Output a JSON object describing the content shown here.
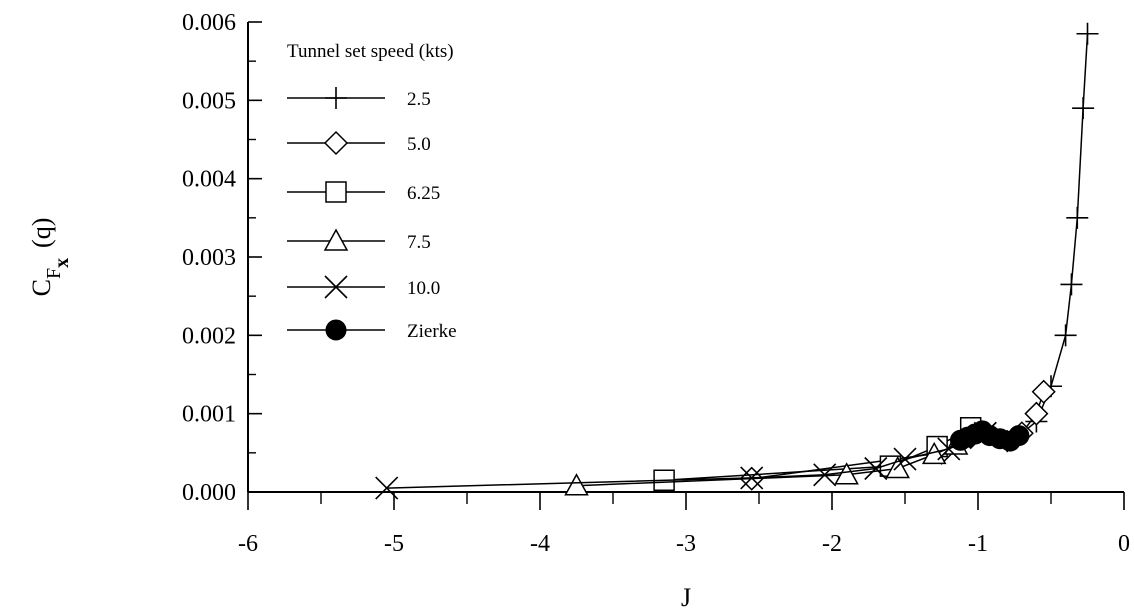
{
  "chart_data": {
    "type": "line",
    "xlabel": "J",
    "ylabel_main": "C",
    "ylabel_sub": "F",
    "ylabel_subsub": "x",
    "ylabel_suffix": "(q)",
    "xlim": [
      -6,
      0
    ],
    "ylim": [
      0,
      0.006
    ],
    "x_ticks": [
      -6,
      -5,
      -4,
      -3,
      -2,
      -1,
      0
    ],
    "x_tick_labels": [
      "-6",
      "-5",
      "-4",
      "-3",
      "-2",
      "-1",
      "0"
    ],
    "y_ticks": [
      0,
      0.001,
      0.002,
      0.003,
      0.004,
      0.005,
      0.006
    ],
    "y_tick_labels": [
      "0.000",
      "0.001",
      "0.002",
      "0.003",
      "0.004",
      "0.005",
      "0.006"
    ],
    "grid": false,
    "legend": {
      "title": "Tunnel set speed (kts)",
      "placement": "top-left"
    },
    "series": [
      {
        "name": "2.5",
        "marker": "plus",
        "points": [
          [
            -0.25,
            0.00585
          ],
          [
            -0.28,
            0.0049
          ],
          [
            -0.32,
            0.0035
          ],
          [
            -0.36,
            0.00265
          ],
          [
            -0.4,
            0.002
          ],
          [
            -0.5,
            0.00135
          ],
          [
            -0.6,
            0.0009
          ],
          [
            -0.7,
            0.00075
          ],
          [
            -0.8,
            0.00065
          ]
        ]
      },
      {
        "name": "5.0",
        "marker": "diamond",
        "points": [
          [
            -0.55,
            0.00128
          ],
          [
            -0.6,
            0.001
          ],
          [
            -0.7,
            0.00075
          ],
          [
            -1.05,
            0.0007
          ],
          [
            -1.25,
            0.0005
          ],
          [
            -2.55,
            0.00017
          ]
        ]
      },
      {
        "name": "6.25",
        "marker": "square",
        "points": [
          [
            -1.05,
            0.00082
          ],
          [
            -1.28,
            0.00058
          ],
          [
            -1.6,
            0.00033
          ],
          [
            -3.15,
            0.00015
          ]
        ]
      },
      {
        "name": "7.5",
        "marker": "triangle",
        "points": [
          [
            -1.15,
            0.0006
          ],
          [
            -1.3,
            0.00048
          ],
          [
            -1.55,
            0.0003
          ],
          [
            -1.9,
            0.00022
          ],
          [
            -3.75,
            8e-05
          ]
        ]
      },
      {
        "name": "10.0",
        "marker": "cross",
        "points": [
          [
            -0.95,
            0.00075
          ],
          [
            -1.2,
            0.00055
          ],
          [
            -1.5,
            0.00042
          ],
          [
            -1.7,
            0.0003
          ],
          [
            -2.05,
            0.00022
          ],
          [
            -2.55,
            0.00018
          ],
          [
            -5.05,
            5e-05
          ]
        ]
      },
      {
        "name": "Zierke",
        "marker": "filled-circle",
        "points": [
          [
            -0.72,
            0.00072
          ],
          [
            -0.78,
            0.00065
          ],
          [
            -0.85,
            0.00068
          ],
          [
            -0.92,
            0.00072
          ],
          [
            -0.97,
            0.00078
          ],
          [
            -1.02,
            0.00074
          ],
          [
            -1.07,
            0.0007
          ],
          [
            -1.12,
            0.00066
          ]
        ]
      }
    ]
  }
}
